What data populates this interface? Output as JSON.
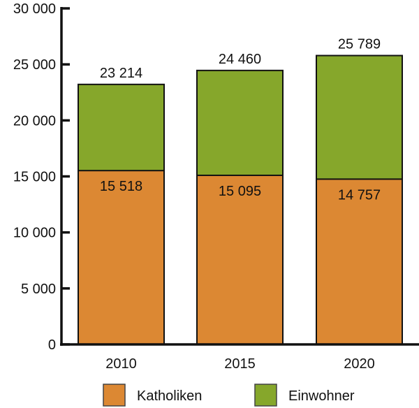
{
  "chart_data": {
    "type": "bar",
    "layout": "overlaid",
    "categories": [
      "2010",
      "2015",
      "2020"
    ],
    "series": [
      {
        "name": "Einwohner",
        "values": [
          23214,
          24460,
          25789
        ],
        "color": "#86A72B",
        "labels": [
          "23 214",
          "24 460",
          "25 789"
        ]
      },
      {
        "name": "Katholiken",
        "values": [
          15518,
          15095,
          14757
        ],
        "color": "#DC8833",
        "labels": [
          "15 518",
          "15 095",
          "14 757"
        ]
      }
    ],
    "ylim": [
      0,
      30000
    ],
    "yticks": [
      0,
      5000,
      10000,
      15000,
      20000,
      25000,
      30000
    ],
    "ytick_labels": [
      "0",
      "5 000",
      "10 000",
      "15 000",
      "20 000",
      "25 000",
      "30 000"
    ],
    "grid": false,
    "legend": {
      "placement": "bottom",
      "items": [
        "Katholiken",
        "Einwohner"
      ]
    }
  }
}
